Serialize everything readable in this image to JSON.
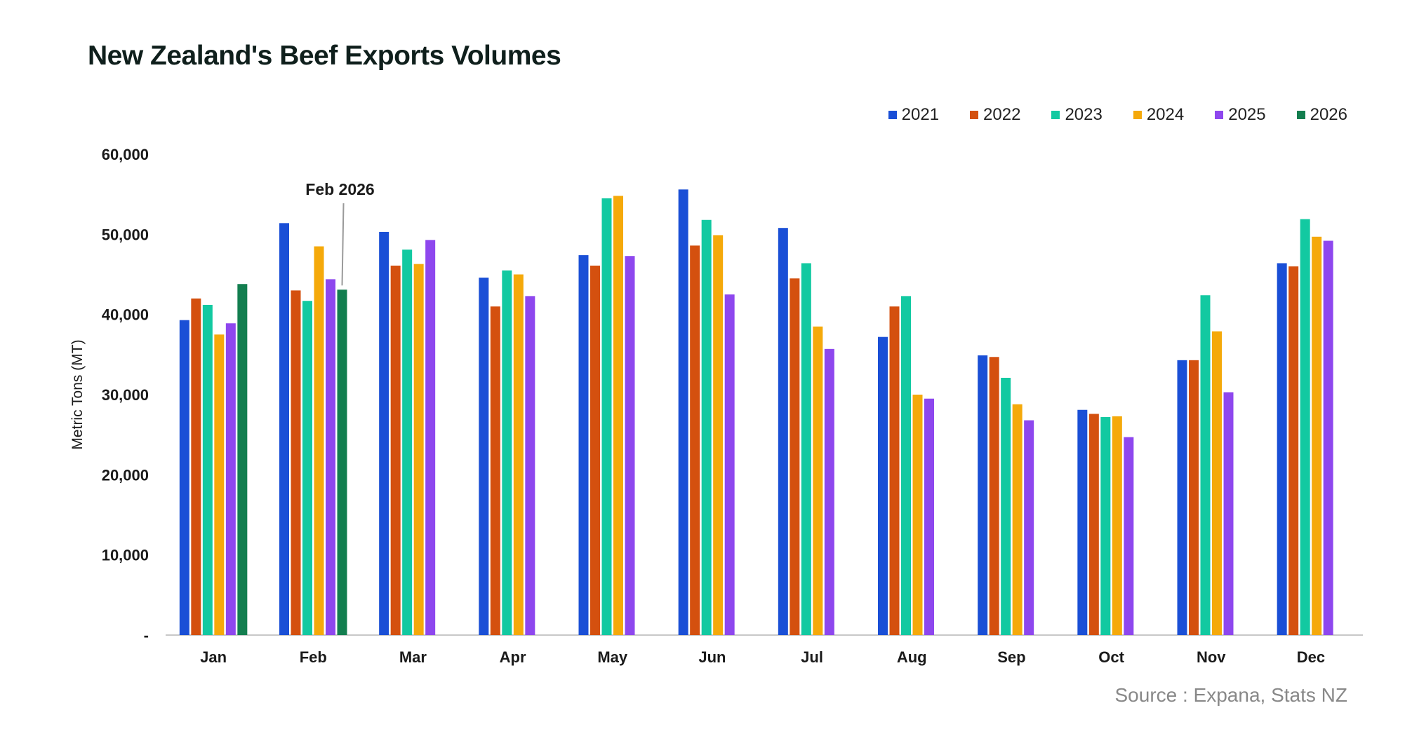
{
  "header": {
    "title": "New Zealand's Beef Exports Volumes"
  },
  "footer": {
    "source": "Source : Expana, Stats NZ"
  },
  "chart_data": {
    "type": "bar",
    "title": "New Zealand's Beef Exports Volumes",
    "xlabel": "",
    "ylabel": "Metric Tons (MT)",
    "ylim": [
      0,
      60000
    ],
    "yticks": [
      0,
      10000,
      20000,
      30000,
      40000,
      50000,
      60000
    ],
    "ytick_labels": [
      "-",
      "10,000",
      "20,000",
      "30,000",
      "40,000",
      "50,000",
      "60,000"
    ],
    "grid": false,
    "legend_position": "top-right",
    "categories": [
      "Jan",
      "Feb",
      "Mar",
      "Apr",
      "May",
      "Jun",
      "Jul",
      "Aug",
      "Sep",
      "Oct",
      "Nov",
      "Dec"
    ],
    "series": [
      {
        "name": "2021",
        "color": "#1a4fd6",
        "values": [
          39300,
          51400,
          50300,
          44600,
          47400,
          55600,
          50800,
          37200,
          34900,
          28100,
          34300,
          46400
        ]
      },
      {
        "name": "2022",
        "color": "#d4500f",
        "values": [
          42000,
          43000,
          46100,
          41000,
          46100,
          48600,
          44500,
          41000,
          34700,
          27600,
          34300,
          46000
        ]
      },
      {
        "name": "2023",
        "color": "#12c9a1",
        "values": [
          41200,
          41700,
          48100,
          45500,
          54500,
          51800,
          46400,
          42300,
          32100,
          27200,
          42400,
          51900
        ]
      },
      {
        "name": "2024",
        "color": "#f5a90a",
        "values": [
          37500,
          48500,
          46300,
          45000,
          54800,
          49900,
          38500,
          30000,
          28800,
          27300,
          37900,
          49700
        ]
      },
      {
        "name": "2025",
        "color": "#8e47ee",
        "values": [
          38900,
          44400,
          49300,
          42300,
          47300,
          42500,
          35700,
          29500,
          26800,
          24700,
          30300,
          49200
        ]
      },
      {
        "name": "2026",
        "color": "#137e4f",
        "values": [
          43800,
          43100,
          null,
          null,
          null,
          null,
          null,
          null,
          null,
          null,
          null,
          null
        ]
      }
    ],
    "annotation": {
      "text": "Feb 2026",
      "category": "Feb",
      "series": "2026"
    }
  }
}
